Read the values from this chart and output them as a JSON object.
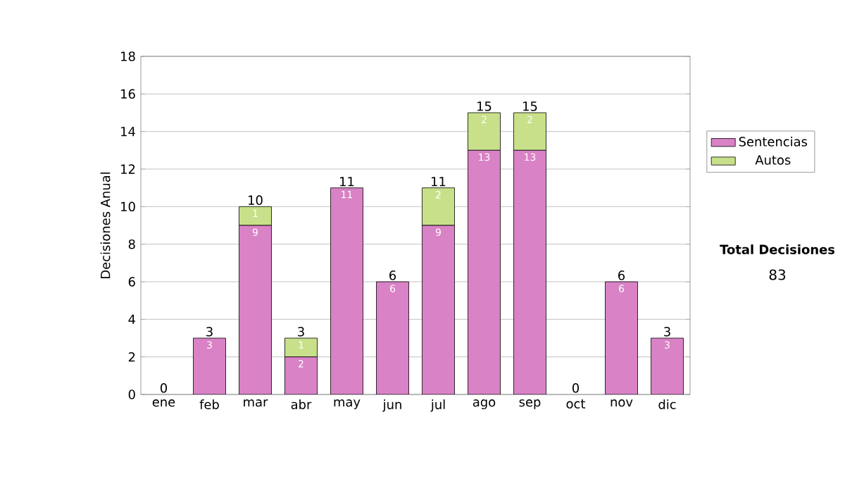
{
  "chart_data": {
    "type": "bar",
    "stacked": true,
    "ylabel": "Decisiones Anual",
    "categories": [
      "ene",
      "feb",
      "mar",
      "abr",
      "may",
      "jun",
      "jul",
      "ago",
      "sep",
      "oct",
      "nov",
      "dic"
    ],
    "series": [
      {
        "name": "Sentencias",
        "color": "#d982c6",
        "values": [
          0,
          3,
          9,
          2,
          11,
          6,
          9,
          13,
          13,
          0,
          6,
          3
        ],
        "value_labels": [
          null,
          "3",
          "9",
          "2",
          "11",
          "6",
          "9",
          "13",
          "13",
          null,
          "6",
          "3"
        ]
      },
      {
        "name": "Autos",
        "color": "#c8e08a",
        "values": [
          0,
          0,
          1,
          1,
          0,
          0,
          2,
          2,
          2,
          0,
          0,
          0
        ],
        "value_labels": [
          null,
          null,
          "1",
          "1",
          null,
          null,
          "2",
          "2",
          "2",
          null,
          null,
          null
        ]
      }
    ],
    "totals": [
      "0",
      "3",
      "10",
      "3",
      "11",
      "6",
      "11",
      "15",
      "15",
      "0",
      "6",
      "3"
    ],
    "ylim": [
      0,
      18
    ],
    "yticks": [
      0,
      2,
      4,
      6,
      8,
      10,
      12,
      14,
      16,
      18
    ],
    "grid": "y",
    "legend": "right",
    "annotations": [
      "Total Decisiones",
      "83"
    ]
  }
}
